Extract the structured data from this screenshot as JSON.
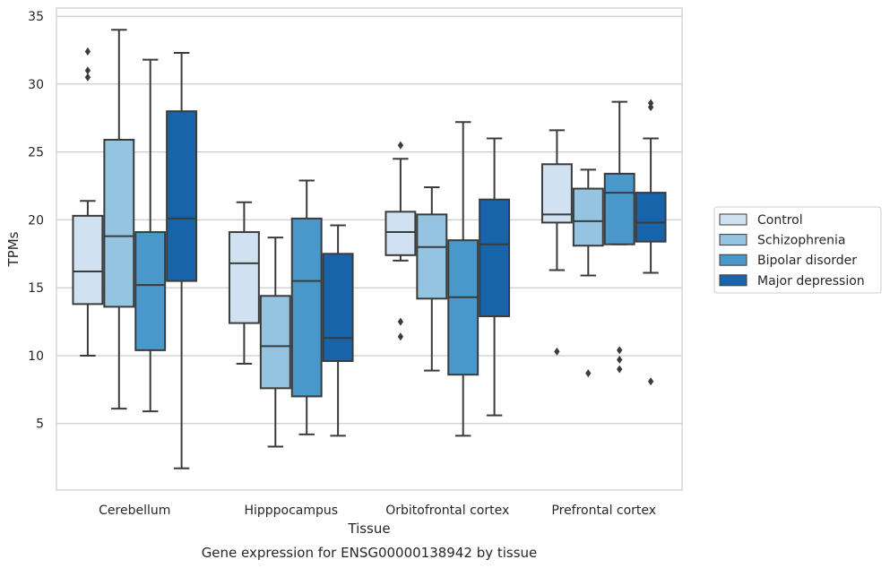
{
  "chart_data": {
    "type": "box",
    "caption": "Gene expression for ENSG00000138942 by tissue",
    "xlabel": "Tissue",
    "ylabel": "TPMs",
    "ylim": [
      0.1,
      35.6
    ],
    "yticks": [
      5,
      10,
      15,
      20,
      25,
      30,
      35
    ],
    "grid": "horizontal",
    "legend_position": "right",
    "categories": [
      "Cerebellum",
      "Hipppocampus",
      "Orbitofrontal cortex",
      "Prefrontal cortex"
    ],
    "series": [
      {
        "name": "Control",
        "color": "#d0e1f2",
        "boxes": [
          {
            "whislo": 10.0,
            "q1": 13.8,
            "med": 16.2,
            "q3": 20.3,
            "whishi": 21.4,
            "fliers": [
              30.5,
              31.0,
              32.4
            ]
          },
          {
            "whislo": 9.4,
            "q1": 12.4,
            "med": 16.8,
            "q3": 19.1,
            "whishi": 21.3,
            "fliers": []
          },
          {
            "whislo": 17.0,
            "q1": 17.4,
            "med": 19.1,
            "q3": 20.6,
            "whishi": 24.5,
            "fliers": [
              11.4,
              12.5,
              25.5
            ]
          },
          {
            "whislo": 16.3,
            "q1": 19.8,
            "med": 20.4,
            "q3": 24.1,
            "whishi": 26.6,
            "fliers": [
              10.3
            ]
          }
        ]
      },
      {
        "name": "Schizophrenia",
        "color": "#94c4df",
        "boxes": [
          {
            "whislo": 6.1,
            "q1": 13.6,
            "med": 18.8,
            "q3": 25.9,
            "whishi": 34.0,
            "fliers": []
          },
          {
            "whislo": 3.3,
            "q1": 7.6,
            "med": 10.7,
            "q3": 14.4,
            "whishi": 18.7,
            "fliers": []
          },
          {
            "whislo": 8.9,
            "q1": 14.2,
            "med": 18.0,
            "q3": 20.4,
            "whishi": 22.4,
            "fliers": []
          },
          {
            "whislo": 15.9,
            "q1": 18.1,
            "med": 19.9,
            "q3": 22.3,
            "whishi": 23.7,
            "fliers": [
              8.7
            ]
          }
        ]
      },
      {
        "name": "Bipolar disorder",
        "color": "#4a98c9",
        "boxes": [
          {
            "whislo": 5.9,
            "q1": 10.4,
            "med": 15.2,
            "q3": 19.1,
            "whishi": 31.8,
            "fliers": []
          },
          {
            "whislo": 4.2,
            "q1": 7.0,
            "med": 15.5,
            "q3": 20.1,
            "whishi": 22.9,
            "fliers": []
          },
          {
            "whislo": 4.1,
            "q1": 8.6,
            "med": 14.3,
            "q3": 18.5,
            "whishi": 27.2,
            "fliers": []
          },
          {
            "whislo": 18.2,
            "q1": 18.2,
            "med": 22.0,
            "q3": 23.4,
            "whishi": 28.7,
            "fliers": [
              9.0,
              9.7,
              10.4
            ]
          }
        ]
      },
      {
        "name": "Major depression",
        "color": "#1764ab",
        "boxes": [
          {
            "whislo": 1.7,
            "q1": 15.5,
            "med": 20.1,
            "q3": 28.0,
            "whishi": 32.3,
            "fliers": []
          },
          {
            "whislo": 4.1,
            "q1": 9.6,
            "med": 11.3,
            "q3": 17.5,
            "whishi": 19.6,
            "fliers": []
          },
          {
            "whislo": 5.6,
            "q1": 12.9,
            "med": 18.2,
            "q3": 21.5,
            "whishi": 26.0,
            "fliers": []
          },
          {
            "whislo": 16.1,
            "q1": 18.4,
            "med": 19.8,
            "q3": 22.0,
            "whishi": 26.0,
            "fliers": [
              8.1,
              28.3,
              28.6
            ]
          }
        ]
      }
    ]
  }
}
